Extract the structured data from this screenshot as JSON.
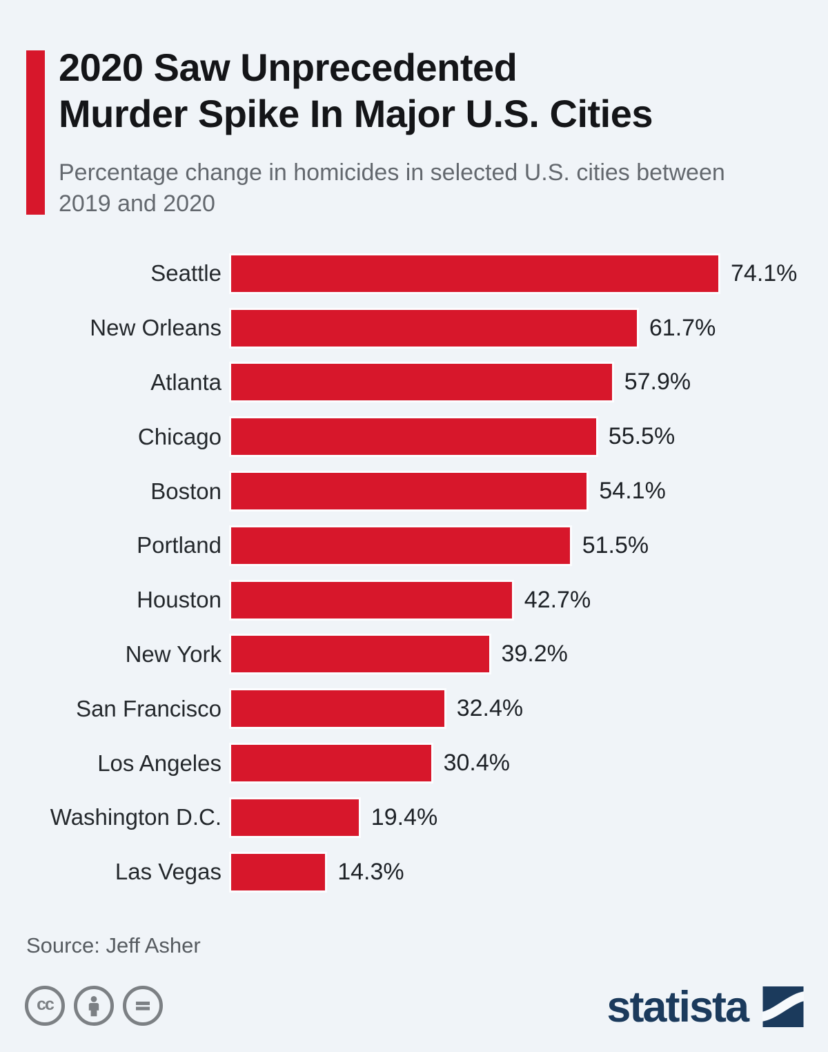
{
  "header": {
    "title_line1": "2020 Saw Unprecedented",
    "title_line2": "Murder Spike In Major U.S. Cities",
    "subtitle": "Percentage change in homicides in selected U.S. cities between 2019 and 2020"
  },
  "chart_data": {
    "type": "bar",
    "orientation": "horizontal",
    "title": "2020 Saw Unprecedented Murder Spike In Major U.S. Cities",
    "subtitle": "Percentage change in homicides in selected U.S. cities between 2019 and 2020",
    "categories": [
      "Seattle",
      "New Orleans",
      "Atlanta",
      "Chicago",
      "Boston",
      "Portland",
      "Houston",
      "New York",
      "San Francisco",
      "Los Angeles",
      "Washington D.C.",
      "Las Vegas"
    ],
    "values": [
      74.1,
      61.7,
      57.9,
      55.5,
      54.1,
      51.5,
      42.7,
      39.2,
      32.4,
      30.4,
      19.4,
      14.3
    ],
    "value_labels": [
      "74.1%",
      "61.7%",
      "57.9%",
      "55.5%",
      "54.1%",
      "51.5%",
      "42.7%",
      "39.2%",
      "32.4%",
      "30.4%",
      "19.4%",
      "14.3%"
    ],
    "xlabel": "",
    "ylabel": "",
    "xlim": [
      0,
      74.1
    ],
    "grid": false,
    "legend": false,
    "data_labels": "outside-end"
  },
  "footer": {
    "source": "Source: Jeff Asher",
    "license_icons": [
      "cc-icon",
      "attribution-person-icon",
      "no-derivatives-equals-icon"
    ],
    "brand_name": "statista"
  },
  "colors": {
    "background": "#f0f4f8",
    "bar_red": "#d7172b",
    "accent_red": "#d7172b",
    "title_text": "#141518",
    "subtitle_text": "#63686e",
    "label_text": "#24282c",
    "value_text": "#1d2126",
    "source_text": "#565b60",
    "license_gray": "#7c8084",
    "brand_navy": "#1b3a5c"
  }
}
